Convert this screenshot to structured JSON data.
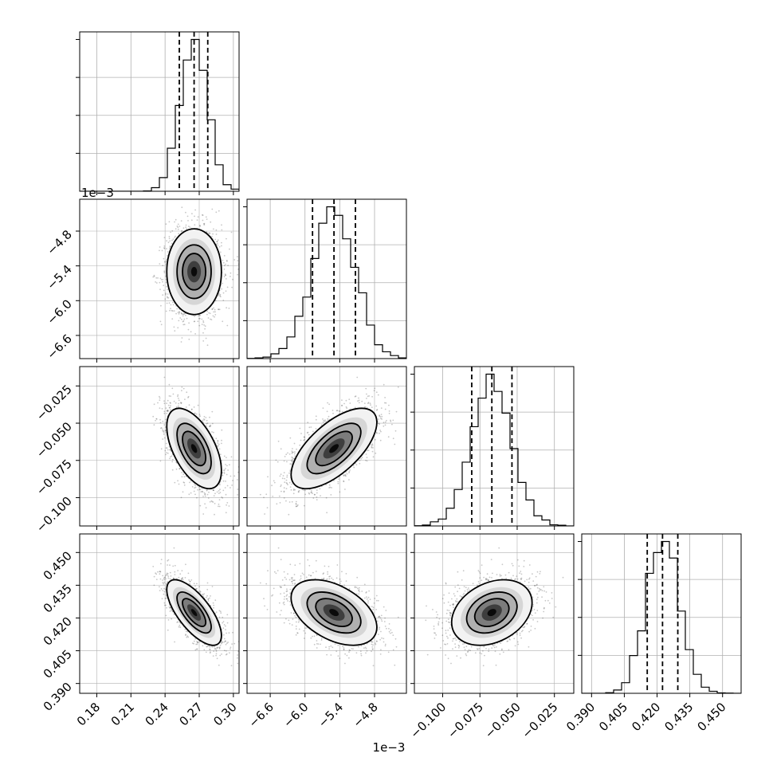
{
  "chart_data": {
    "type": "corner",
    "params": [
      {
        "range": [
          0.165,
          0.305
        ],
        "ticks": [
          0.18,
          0.21,
          0.24,
          0.27,
          0.3
        ],
        "tick_labels": [
          "0.18",
          "0.21",
          "0.24",
          "0.27",
          "0.30"
        ],
        "quantiles": [
          0.2525,
          0.2655,
          0.2775
        ],
        "mean": 0.2655,
        "sd": 0.012
      },
      {
        "range": [
          -7.0,
          -4.25
        ],
        "ticks": [
          -6.6,
          -6.0,
          -5.4,
          -4.8
        ],
        "tick_labels": [
          "−6.6",
          "−6.0",
          "−5.4",
          "−4.8"
        ],
        "offset": "1e−3",
        "quantiles": [
          -5.87,
          -5.5,
          -5.13
        ],
        "mean": -5.5,
        "sd": 0.37
      },
      {
        "range": [
          -0.119,
          -0.012
        ],
        "ticks": [
          -0.1,
          -0.075,
          -0.05,
          -0.025
        ],
        "tick_labels": [
          "−0.100",
          "−0.075",
          "−0.050",
          "−0.025"
        ],
        "quantiles": [
          -0.0805,
          -0.067,
          -0.0535
        ],
        "mean": -0.067,
        "sd": 0.0135
      },
      {
        "range": [
          0.3855,
          0.4585
        ],
        "ticks": [
          0.39,
          0.405,
          0.42,
          0.435,
          0.45
        ],
        "tick_labels": [
          "0.390",
          "0.405",
          "0.420",
          "0.435",
          "0.450"
        ],
        "quantiles": [
          0.4155,
          0.4225,
          0.4295
        ],
        "mean": 0.4225,
        "sd": 0.0075
      }
    ],
    "correlations": [
      [
        1.0,
        0.0,
        -0.55,
        -0.7
      ],
      [
        0.0,
        1.0,
        0.65,
        -0.45
      ],
      [
        -0.55,
        0.65,
        1.0,
        0.3
      ],
      [
        -0.7,
        -0.45,
        0.3,
        1.0
      ]
    ],
    "quantile_levels": [
      0.16,
      0.5,
      0.84
    ],
    "grid": true,
    "colors": {
      "line": "#000000",
      "grid": "#b0b0b0",
      "scatter": "#000000"
    }
  }
}
